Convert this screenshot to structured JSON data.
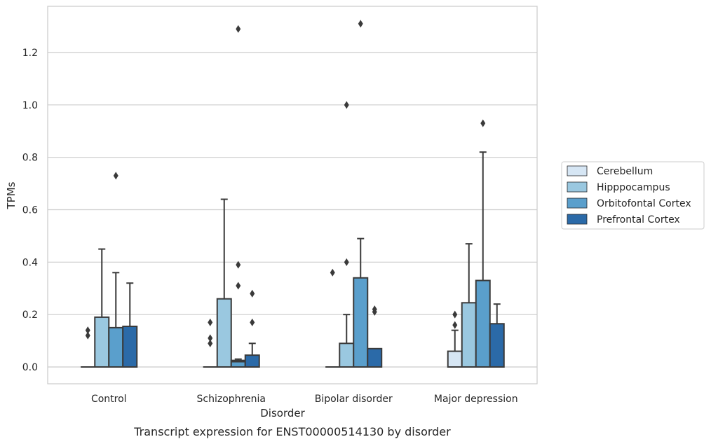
{
  "caption": "Transcript expression for ENST00000514130 by disorder",
  "chart_data": {
    "type": "box",
    "xlabel": "Disorder",
    "ylabel": "TPMs",
    "ylim": [
      -0.065,
      1.38
    ],
    "yticks": [
      0.0,
      0.2,
      0.4,
      0.6,
      0.8,
      1.0,
      1.2
    ],
    "ytick_labels": [
      "0.0",
      "0.2",
      "0.4",
      "0.6",
      "0.8",
      "1.0",
      "1.2"
    ],
    "grid": "horizontal",
    "legend_position": "right",
    "categories": [
      "Control",
      "Schizophrenia",
      "Bipolar disorder",
      "Major depression"
    ],
    "series": [
      {
        "name": "Cerebellum",
        "color": "#d6e6f4",
        "boxes": [
          {
            "q1": 0,
            "median": 0,
            "q3": 0,
            "whisker_low": 0,
            "whisker_high": 0,
            "outliers": [
              0.12,
              0.14
            ]
          },
          {
            "q1": 0,
            "median": 0,
            "q3": 0,
            "whisker_low": 0,
            "whisker_high": 0,
            "outliers": [
              0.09,
              0.11,
              0.17
            ]
          },
          {
            "q1": 0,
            "median": 0,
            "q3": 0,
            "whisker_low": 0,
            "whisker_high": 0,
            "outliers": [
              0.36
            ]
          },
          {
            "q1": 0,
            "median": 0,
            "q3": 0.06,
            "whisker_low": 0,
            "whisker_high": 0.14,
            "outliers": [
              0.16,
              0.2
            ]
          }
        ]
      },
      {
        "name": "Hipppocampus",
        "color": "#9ac8e0",
        "boxes": [
          {
            "q1": 0,
            "median": 0,
            "q3": 0.19,
            "whisker_low": 0,
            "whisker_high": 0.45,
            "outliers": []
          },
          {
            "q1": 0,
            "median": 0,
            "q3": 0.26,
            "whisker_low": 0,
            "whisker_high": 0.64,
            "outliers": []
          },
          {
            "q1": 0,
            "median": 0,
            "q3": 0.09,
            "whisker_low": 0,
            "whisker_high": 0.2,
            "outliers": [
              0.4,
              1.0
            ]
          },
          {
            "q1": 0,
            "median": 0,
            "q3": 0.245,
            "whisker_low": 0,
            "whisker_high": 0.47,
            "outliers": []
          }
        ]
      },
      {
        "name": "Orbitofontal Cortex",
        "color": "#5a9fcc",
        "boxes": [
          {
            "q1": 0,
            "median": 0,
            "q3": 0.15,
            "whisker_low": 0,
            "whisker_high": 0.36,
            "outliers": [
              0.73
            ]
          },
          {
            "q1": 0,
            "median": 0.02,
            "q3": 0.025,
            "whisker_low": 0,
            "whisker_high": 0.03,
            "outliers": [
              0.31,
              0.39,
              1.29
            ]
          },
          {
            "q1": 0,
            "median": 0,
            "q3": 0.34,
            "whisker_low": 0,
            "whisker_high": 0.49,
            "outliers": [
              1.31
            ]
          },
          {
            "q1": 0,
            "median": 0,
            "q3": 0.33,
            "whisker_low": 0,
            "whisker_high": 0.82,
            "outliers": [
              0.93
            ]
          }
        ]
      },
      {
        "name": "Prefrontal Cortex",
        "color": "#2b6aa8",
        "boxes": [
          {
            "q1": 0,
            "median": 0,
            "q3": 0.155,
            "whisker_low": 0,
            "whisker_high": 0.32,
            "outliers": []
          },
          {
            "q1": 0,
            "median": 0,
            "q3": 0.045,
            "whisker_low": 0,
            "whisker_high": 0.09,
            "outliers": [
              0.17,
              0.28
            ]
          },
          {
            "q1": 0,
            "median": 0,
            "q3": 0.07,
            "whisker_low": 0,
            "whisker_high": 0.07,
            "outliers": [
              0.21,
              0.22
            ]
          },
          {
            "q1": 0,
            "median": 0,
            "q3": 0.165,
            "whisker_low": 0,
            "whisker_high": 0.24,
            "outliers": []
          }
        ]
      }
    ]
  }
}
